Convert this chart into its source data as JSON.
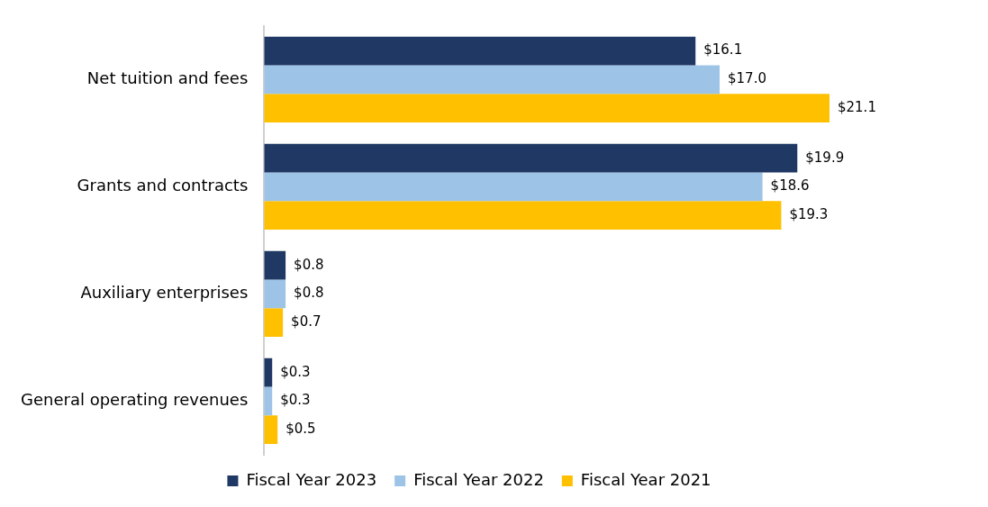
{
  "chart_data": {
    "type": "bar",
    "orientation": "horizontal",
    "legend": "bottom",
    "categories": [
      "Net tuition and fees",
      "Grants and contracts",
      "Auxiliary enterprises",
      "General operating revenues"
    ],
    "series": [
      {
        "name": "Fiscal Year 2023",
        "color": "#1f3864",
        "values": [
          16.1,
          19.9,
          0.8,
          0.3
        ],
        "value_labels": [
          "$16.1",
          "$19.9",
          "$0.8",
          "$0.3"
        ]
      },
      {
        "name": "Fiscal Year 2022",
        "color": "#9dc3e6",
        "values": [
          17.0,
          18.6,
          0.8,
          0.3
        ],
        "value_labels": [
          "$17.0",
          "$18.6",
          "$0.8",
          "$0.3"
        ]
      },
      {
        "name": "Fiscal Year 2021",
        "color": "#ffc000",
        "values": [
          21.1,
          19.3,
          0.7,
          0.5
        ],
        "value_labels": [
          "$21.1",
          "$19.3",
          "$0.7",
          "$0.5"
        ]
      }
    ]
  }
}
